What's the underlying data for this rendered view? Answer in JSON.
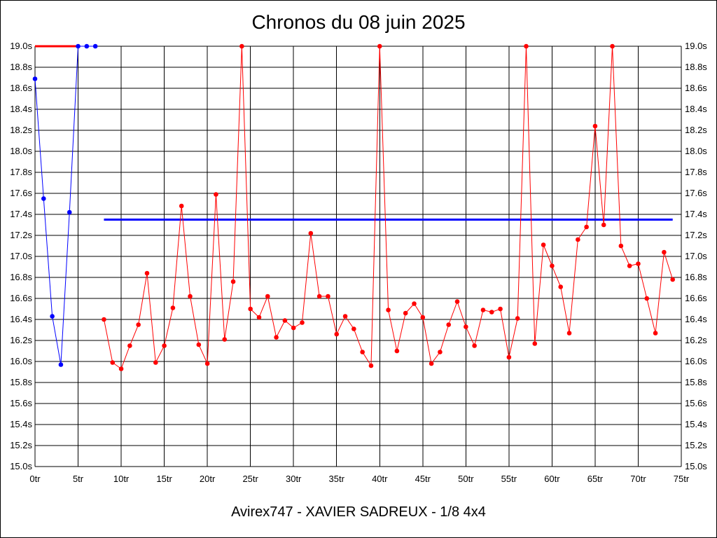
{
  "chart_data": {
    "type": "line",
    "title": "Chronos du 08 juin 2025",
    "subtitle": "Avirex747 - XAVIER SADREUX - 1/8 4x4",
    "xlim": [
      0,
      75
    ],
    "ylim": [
      15.0,
      19.0
    ],
    "x_ticks": [
      0,
      5,
      10,
      15,
      20,
      25,
      30,
      35,
      40,
      45,
      50,
      55,
      60,
      65,
      70,
      75
    ],
    "x_tick_labels": [
      "0tr",
      "5tr",
      "10tr",
      "15tr",
      "20tr",
      "25tr",
      "30tr",
      "35tr",
      "40tr",
      "45tr",
      "50tr",
      "55tr",
      "60tr",
      "65tr",
      "70tr",
      "75tr"
    ],
    "y_ticks": [
      15.0,
      15.2,
      15.4,
      15.6,
      15.8,
      16.0,
      16.2,
      16.4,
      16.6,
      16.8,
      17.0,
      17.2,
      17.4,
      17.6,
      17.8,
      18.0,
      18.2,
      18.4,
      18.6,
      18.8,
      19.0
    ],
    "y_tick_labels": [
      "15.0s",
      "15.2s",
      "15.4s",
      "15.6s",
      "15.8s",
      "16.0s",
      "16.2s",
      "16.4s",
      "16.6s",
      "16.8s",
      "17.0s",
      "17.2s",
      "17.4s",
      "17.6s",
      "17.8s",
      "18.0s",
      "18.2s",
      "18.4s",
      "18.6s",
      "18.8s",
      "19.0s"
    ],
    "grid": true,
    "series": [
      {
        "color": "#0000ff",
        "x": [
          0,
          1,
          2,
          3,
          4,
          5,
          6,
          7
        ],
        "values": [
          18.69,
          17.55,
          16.43,
          15.97,
          17.42,
          19.0,
          19.0,
          19.0
        ]
      },
      {
        "color": "#ff0000",
        "x": [
          8,
          9,
          10,
          11,
          12,
          13,
          14,
          15,
          16,
          17,
          18,
          19,
          20,
          21,
          22,
          23,
          24,
          25,
          26,
          27,
          28,
          29,
          30,
          31,
          32,
          33,
          34,
          35,
          36,
          37,
          38,
          39,
          40,
          41,
          42,
          43,
          44,
          45,
          46,
          47,
          48,
          49,
          50,
          51,
          52,
          53,
          54,
          55,
          56,
          57,
          58,
          59,
          60,
          61,
          62,
          63,
          64,
          65,
          66,
          67,
          68,
          69,
          70,
          71,
          72,
          73,
          74
        ],
        "values": [
          16.4,
          15.99,
          15.93,
          16.15,
          16.35,
          16.84,
          15.99,
          16.15,
          16.51,
          17.48,
          16.62,
          16.16,
          15.98,
          17.59,
          16.21,
          16.76,
          19.0,
          16.5,
          16.42,
          16.62,
          16.23,
          16.39,
          16.32,
          16.37,
          17.22,
          16.62,
          16.62,
          16.26,
          16.43,
          16.31,
          16.09,
          15.96,
          19.0,
          16.49,
          16.1,
          16.46,
          16.55,
          16.42,
          15.98,
          16.09,
          16.35,
          16.57,
          16.33,
          16.15,
          16.49,
          16.47,
          16.5,
          16.04,
          16.41,
          19.0,
          16.17,
          17.11,
          16.91,
          16.71,
          16.27,
          17.16,
          17.28,
          18.24,
          17.3,
          19.0,
          17.1,
          16.91,
          16.93,
          16.6,
          16.27,
          17.04,
          16.78
        ]
      }
    ],
    "reference_lines": [
      {
        "color": "#ff0000",
        "x": [
          0,
          5
        ],
        "y": 19.0
      },
      {
        "color": "#0000ff",
        "x": [
          8,
          74
        ],
        "y": 17.35
      }
    ]
  }
}
